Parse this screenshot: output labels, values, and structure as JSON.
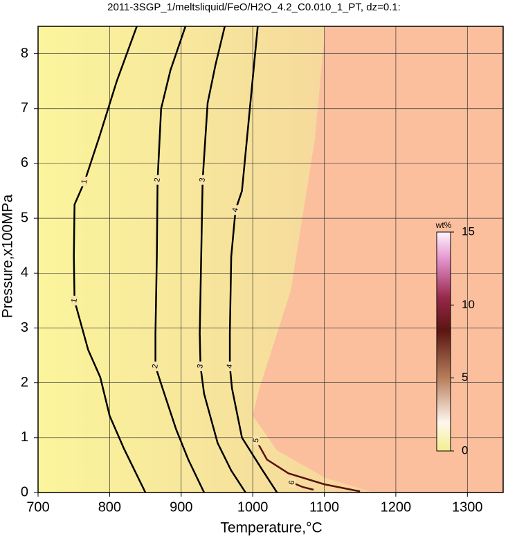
{
  "chart_data": {
    "type": "contour",
    "title": "2011-3SGP_1/meltsliquid/FeO/H2O_4.2_C0.010_1_PT, dz=0.1:",
    "xlabel": "Temperature,°C",
    "ylabel": "Pressure,x100MPa",
    "xlim": [
      700,
      1350
    ],
    "ylim": [
      0,
      8.5
    ],
    "xticks": [
      700,
      800,
      900,
      1000,
      1100,
      1200,
      1300
    ],
    "yticks": [
      0,
      1,
      2,
      3,
      4,
      5,
      6,
      7,
      8
    ],
    "grid": true,
    "contours": [
      {
        "level": 1,
        "x": [
          838,
          810,
          786,
          765,
          751,
          750,
          751,
          770,
          787,
          800,
          820,
          850
        ],
        "y": [
          8.5,
          7.5,
          6.5,
          5.67,
          5.25,
          4.3,
          3.5,
          2.6,
          2.1,
          1.4,
          0.8,
          0
        ]
      },
      {
        "level": 2,
        "x": [
          906,
          885,
          872,
          867,
          866,
          864,
          864,
          874,
          893,
          910,
          932
        ],
        "y": [
          8.5,
          7.7,
          7,
          5.7,
          4.3,
          2.9,
          2.3,
          1.9,
          1.15,
          0.6,
          0
        ]
      },
      {
        "level": 3,
        "x": [
          961,
          948,
          937,
          930,
          928,
          926,
          927,
          932,
          951,
          970,
          990
        ],
        "y": [
          8.5,
          7.8,
          7.1,
          5.7,
          4.3,
          2.9,
          2.3,
          1.8,
          0.9,
          0.4,
          0
        ]
      },
      {
        "level": 4,
        "x": [
          1007,
          996,
          985,
          976,
          970,
          968,
          968,
          971,
          985,
          1014,
          1034
        ],
        "y": [
          8.5,
          7,
          5.5,
          5.15,
          4.3,
          2.9,
          2.3,
          1.9,
          1.0,
          0.4,
          0
        ]
      },
      {
        "level": 5,
        "x": [
          1005,
          1020,
          1050,
          1100,
          1150
        ],
        "y": [
          0.95,
          0.6,
          0.35,
          0.15,
          0.02
        ]
      },
      {
        "level": 6,
        "x": [
          1055,
          1070,
          1085
        ],
        "y": [
          0.18,
          0.1,
          0.05
        ]
      }
    ],
    "colorbar": {
      "label": "wt%",
      "lim": [
        0,
        15
      ],
      "ticks": [
        0,
        5,
        10,
        15
      ]
    }
  }
}
